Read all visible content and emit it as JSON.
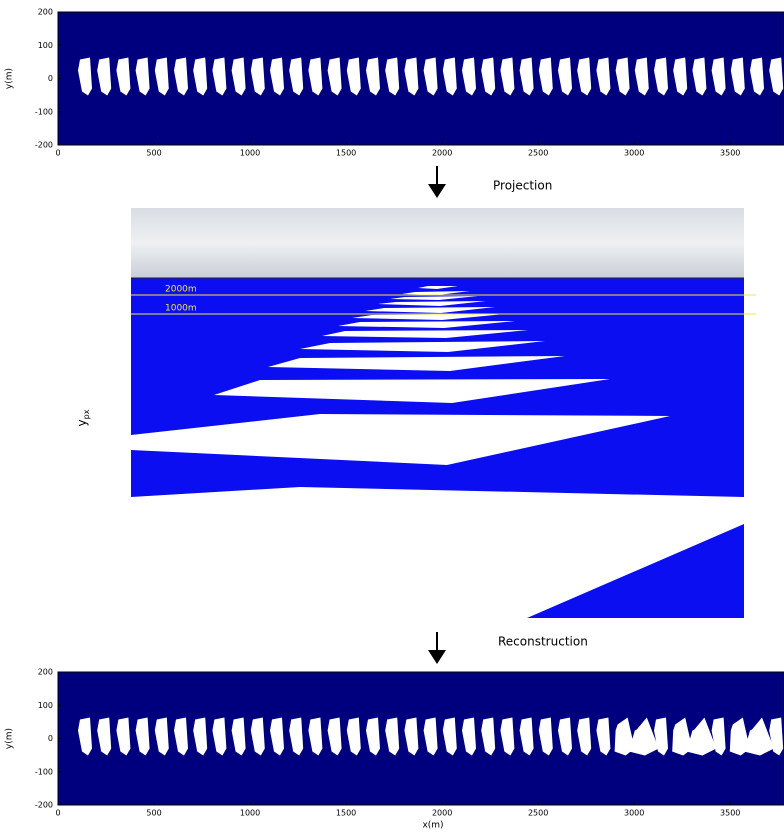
{
  "top_plot": {
    "ylabel": "y(m)",
    "xlim": [
      0,
      3780
    ],
    "ylim": [
      -200,
      200
    ],
    "xticks": [
      0,
      500,
      1000,
      1500,
      2000,
      2500,
      3000,
      3500
    ],
    "yticks": [
      -200,
      -100,
      0,
      100,
      200
    ]
  },
  "projection": {
    "arrow_label": "Projection",
    "horizon_labels": [
      "2000m",
      "1000m"
    ],
    "ylabel": "y",
    "ylabel_subscript": "px"
  },
  "reconstruction": {
    "arrow_label": "Reconstruction"
  },
  "bottom_plot": {
    "ylabel": "y(m)",
    "xlabel": "x(m)",
    "xlim": [
      0,
      3780
    ],
    "ylim": [
      -200,
      200
    ],
    "xticks": [
      0,
      500,
      1000,
      1500,
      2000,
      2500,
      3000,
      3500
    ],
    "yticks": [
      -200,
      -100,
      0,
      100,
      200
    ]
  }
}
